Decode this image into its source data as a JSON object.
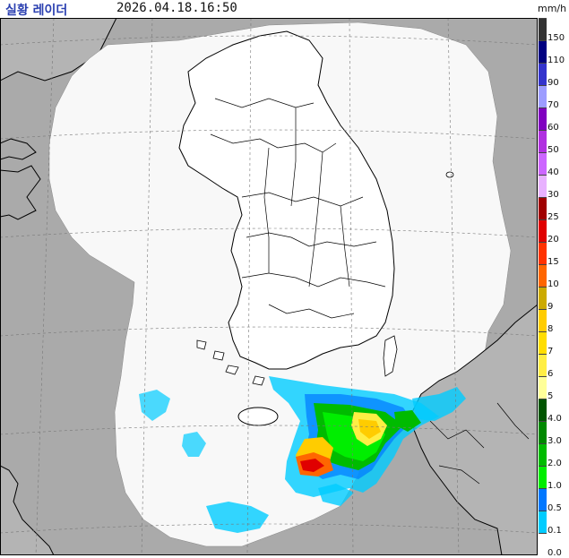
{
  "header": {
    "title": "실황 레이더",
    "timestamp": "2026.04.18.16:50",
    "unit": "mm/h"
  },
  "colors": {
    "sea": "#aaaaaa",
    "coverage": "#f8f8f8",
    "coast": "#000000",
    "grid": "#777777"
  },
  "legend": [
    {
      "label": "150",
      "color": "#333333"
    },
    {
      "label": "110",
      "color": "#000080"
    },
    {
      "label": "90",
      "color": "#3333cc"
    },
    {
      "label": "70",
      "color": "#9d9dff"
    },
    {
      "label": "60",
      "color": "#8000c0"
    },
    {
      "label": "50",
      "color": "#b030e0"
    },
    {
      "label": "40",
      "color": "#cc66ff"
    },
    {
      "label": "30",
      "color": "#e8b2ff"
    },
    {
      "label": "25",
      "color": "#a00000"
    },
    {
      "label": "20",
      "color": "#e00000"
    },
    {
      "label": "15",
      "color": "#ff3300"
    },
    {
      "label": "10",
      "color": "#ff6600"
    },
    {
      "label": "9",
      "color": "#ccaa00"
    },
    {
      "label": "8",
      "color": "#ffcc00"
    },
    {
      "label": "7",
      "color": "#ffdd00"
    },
    {
      "label": "6",
      "color": "#ffee44"
    },
    {
      "label": "5",
      "color": "#ffff99"
    },
    {
      "label": "4.0",
      "color": "#005500"
    },
    {
      "label": "3.0",
      "color": "#008800"
    },
    {
      "label": "2.0",
      "color": "#00bb00"
    },
    {
      "label": "1.0",
      "color": "#00ee00"
    },
    {
      "label": "0.5",
      "color": "#0077ff"
    },
    {
      "label": "0.1",
      "color": "#00ccff"
    },
    {
      "label": "0.0",
      "color": "#ffffff"
    }
  ]
}
